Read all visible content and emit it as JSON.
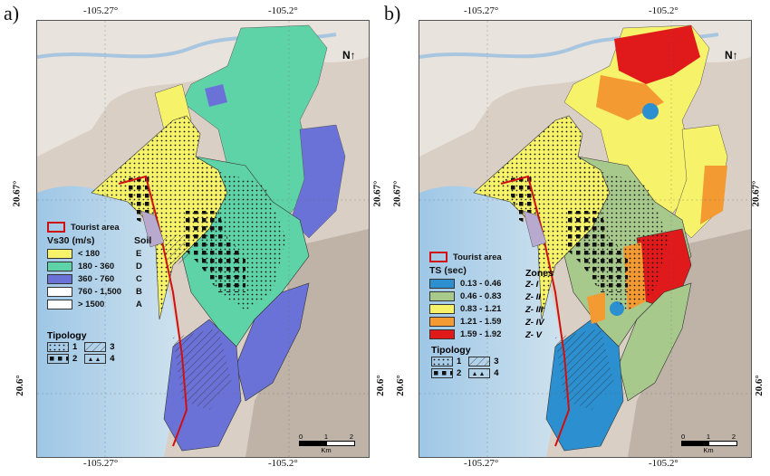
{
  "panels": [
    {
      "letter": "a)"
    },
    {
      "letter": "b)"
    }
  ],
  "axes": {
    "top_ticks": [
      "-105.27°",
      "-105.2°"
    ],
    "bottom_ticks": [
      "-105.27°",
      "-105.2°"
    ],
    "lat_ticks": [
      "20.67°",
      "20.6°"
    ]
  },
  "legend_a": {
    "tourist": "Tourist area",
    "vs_title": "Vs30 (m/s)",
    "soil_title": "Soil",
    "classes": [
      {
        "range": "< 180",
        "soil": "E",
        "color": "#f6f36a"
      },
      {
        "range": "180 - 360",
        "soil": "D",
        "color": "#5fd3a8"
      },
      {
        "range": "360 - 760",
        "soil": "C",
        "color": "#6a72d8"
      },
      {
        "range": "760 - 1,500",
        "soil": "B",
        "color": "#ffffff"
      },
      {
        "range": "> 1500",
        "soil": "A",
        "color": "#ffffff"
      }
    ],
    "tipology_title": "Tipology",
    "tipology": [
      "1",
      "2",
      "3",
      "4"
    ]
  },
  "legend_b": {
    "tourist": "Tourist area",
    "ts_title": "TS (sec)",
    "zones_title": "Zones",
    "classes": [
      {
        "range": "0.13 - 0.46",
        "zone": "Z- I",
        "color": "#2b8fd0"
      },
      {
        "range": "0.46 - 0.83",
        "zone": "Z- II",
        "color": "#a8c98c"
      },
      {
        "range": "0.83 - 1.21",
        "zone": "Z- III",
        "color": "#f6f36a"
      },
      {
        "range": "1.21 - 1.59",
        "zone": "Z- IV",
        "color": "#f39a33"
      },
      {
        "range": "1.59 - 1.92",
        "zone": "Z- V",
        "color": "#e01a1a"
      }
    ],
    "tipology_title": "Tipology",
    "tipology": [
      "1",
      "2",
      "3",
      "4"
    ]
  },
  "scale": {
    "ticks": [
      "0",
      "1",
      "2"
    ],
    "unit": "Km"
  },
  "north": "N"
}
